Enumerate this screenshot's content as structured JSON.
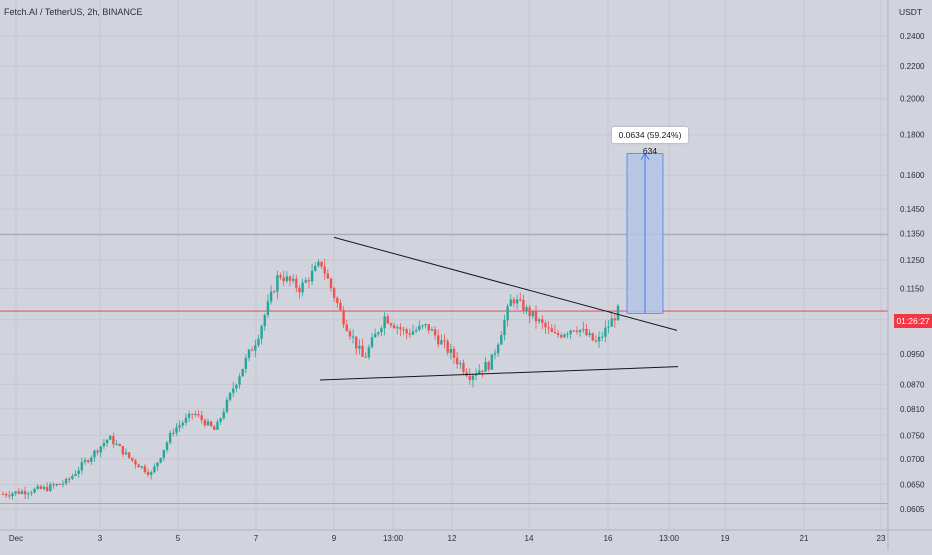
{
  "header": {
    "symbol_title": "Fetch.AI / TetherUS, 2h, BINANCE",
    "currency": "USDT"
  },
  "colors": {
    "background": "#d1d4dc",
    "grid": "#c5c8cf",
    "up": "#26a69a",
    "down": "#ef5350",
    "price_line": "#f23645",
    "range_fill": "#b3c4e6",
    "range_border": "#2962ff",
    "trendline": "#131722"
  },
  "price_axis": {
    "ticks": [
      "0.2400",
      "0.2200",
      "0.2000",
      "0.1800",
      "0.1600",
      "0.1450",
      "0.1350",
      "0.1250",
      "0.1150",
      "0.1050",
      "0.0950",
      "0.0870",
      "0.0810",
      "0.0750",
      "0.0700",
      "0.0650",
      "0.0605"
    ],
    "current_price_countdown": "01:26:27"
  },
  "time_axis": {
    "ticks": [
      "Dec",
      "3",
      "5",
      "7",
      "9",
      "13:00",
      "12",
      "14",
      "16",
      "13:00",
      "19",
      "21",
      "23"
    ]
  },
  "measure_tool": {
    "label": "0.0634 (59.24%) 634"
  },
  "chart_data": {
    "type": "candlestick",
    "title": "Fetch.AI / TetherUS, 2h, BINANCE",
    "yunit": "USDT",
    "ylim": [
      0.058,
      0.26
    ],
    "yscale": "log",
    "current_price": 0.1077,
    "countdown": "01:26:27",
    "horizontal_reference_price": 0.1345,
    "support_price": 0.0615,
    "pattern": {
      "upper_trendline": [
        {
          "time": "9",
          "price": 0.1335
        },
        {
          "time": "17",
          "price": 0.1018
        }
      ],
      "lower_trendline": [
        {
          "time": "8.9",
          "price": 0.0881
        },
        {
          "time": "17",
          "price": 0.0916
        }
      ]
    },
    "measurement": {
      "from_price": 0.107,
      "to_price": 0.1704,
      "change": 0.0634,
      "percent": "59.24%",
      "ticks": 634
    },
    "waypoints": [
      {
        "time": "Nov 30",
        "price": 0.0632
      },
      {
        "time": "Dec 3",
        "price": 0.0637
      },
      {
        "time": "Dec 4",
        "price": 0.0642
      },
      {
        "time": "Dec 5",
        "price": 0.0655
      },
      {
        "time": "Dec 5 late",
        "price": 0.07
      },
      {
        "time": "Dec 6",
        "price": 0.0745
      },
      {
        "time": "Dec 6 mid",
        "price": 0.07
      },
      {
        "time": "Dec 7",
        "price": 0.067
      },
      {
        "time": "Dec 7 mid",
        "price": 0.076
      },
      {
        "time": "Dec 8",
        "price": 0.08
      },
      {
        "time": "Dec 8 late",
        "price": 0.076
      },
      {
        "time": "Dec 8 end",
        "price": 0.088
      },
      {
        "time": "Dec 9",
        "price": 0.1
      },
      {
        "time": "Dec 9 mid",
        "price": 0.12
      },
      {
        "time": "Dec 9 late",
        "price": 0.115
      },
      {
        "time": "Dec 10",
        "price": 0.124
      },
      {
        "time": "Dec 10 mid",
        "price": 0.106
      },
      {
        "time": "Dec 11",
        "price": 0.0935
      },
      {
        "time": "Dec 11 mid",
        "price": 0.106
      },
      {
        "time": "Dec 12",
        "price": 0.101
      },
      {
        "time": "Dec 12 mid",
        "price": 0.103
      },
      {
        "time": "Dec 13",
        "price": 0.096
      },
      {
        "time": "Dec 13 mid",
        "price": 0.0895
      },
      {
        "time": "Dec 14",
        "price": 0.0925
      },
      {
        "time": "Dec 14 start",
        "price": 0.112
      },
      {
        "time": "Dec 14 mid",
        "price": 0.106
      },
      {
        "time": "Dec 15",
        "price": 0.1
      },
      {
        "time": "Dec 15 mid",
        "price": 0.103
      },
      {
        "time": "Dec 16",
        "price": 0.098
      },
      {
        "time": "Dec 16 mid",
        "price": 0.1077
      }
    ]
  }
}
